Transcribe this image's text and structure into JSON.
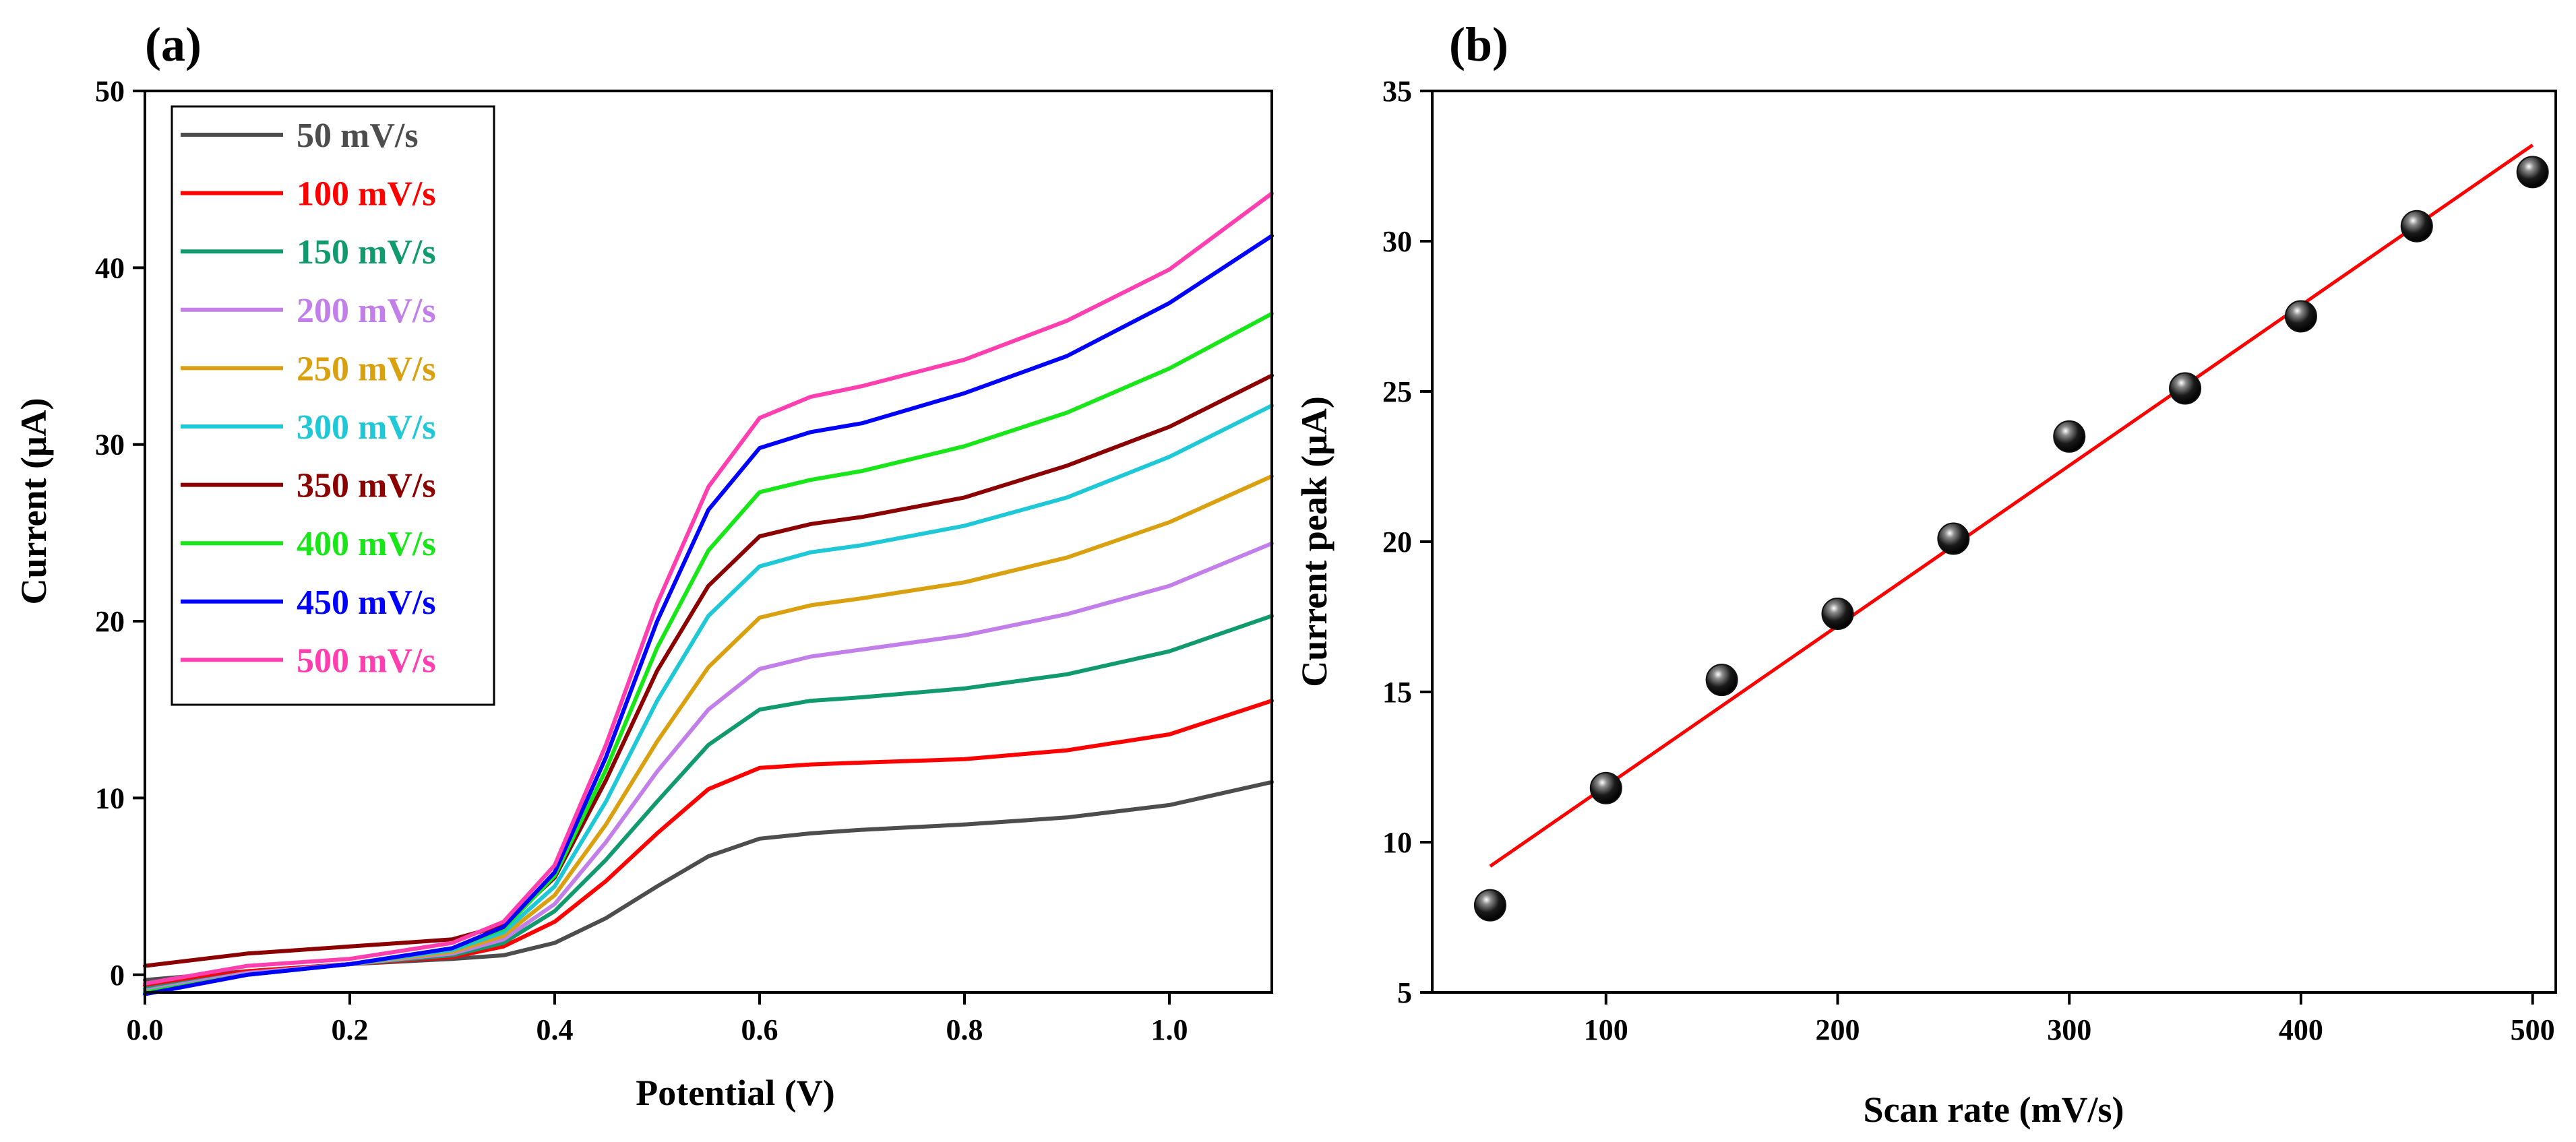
{
  "panels": [
    {
      "label": "(a)",
      "chart_data": {
        "type": "line",
        "xlabel": "Potential (V)",
        "ylabel": "Current (μA)",
        "xlim": [
          0,
          1.1
        ],
        "ylim": [
          -1,
          50
        ],
        "xticks": [
          0.0,
          0.2,
          0.4,
          0.6,
          0.8,
          1.0
        ],
        "xtick_labels": [
          "0.0",
          "0.2",
          "0.4",
          "0.6",
          "0.8",
          "1.0"
        ],
        "yticks": [
          0,
          10,
          20,
          30,
          40,
          50
        ],
        "ytick_labels": [
          "0",
          "10",
          "20",
          "30",
          "40",
          "50"
        ],
        "grid": false,
        "legend_position": "top-left",
        "x": [
          0.0,
          0.1,
          0.2,
          0.3,
          0.35,
          0.4,
          0.45,
          0.5,
          0.55,
          0.6,
          0.65,
          0.7,
          0.8,
          0.9,
          1.0,
          1.1
        ],
        "series": [
          {
            "name": "50 mV/s",
            "color": "#4d4d4d",
            "values": [
              -0.3,
              0.2,
              0.6,
              0.9,
              1.1,
              1.8,
              3.2,
              5.0,
              6.7,
              7.7,
              8.0,
              8.2,
              8.5,
              8.9,
              9.6,
              10.9
            ]
          },
          {
            "name": "100 mV/s",
            "color": "#ff0000",
            "values": [
              -0.6,
              0.2,
              0.6,
              1.0,
              1.6,
              3.0,
              5.3,
              8.0,
              10.5,
              11.7,
              11.9,
              12.0,
              12.2,
              12.7,
              13.6,
              15.5
            ]
          },
          {
            "name": "150 mV/s",
            "color": "#119a6e",
            "values": [
              -0.8,
              0.1,
              0.6,
              1.1,
              1.8,
              3.6,
              6.5,
              9.8,
              13.0,
              15.0,
              15.5,
              15.7,
              16.2,
              17.0,
              18.3,
              20.3
            ]
          },
          {
            "name": "200 mV/s",
            "color": "#c27fe9",
            "values": [
              -0.9,
              0.1,
              0.6,
              1.2,
              2.0,
              4.0,
              7.5,
              11.5,
              15.0,
              17.3,
              18.0,
              18.4,
              19.2,
              20.4,
              22.0,
              24.4
            ]
          },
          {
            "name": "250 mV/s",
            "color": "#d9a00f",
            "values": [
              -1.0,
              0.0,
              0.6,
              1.3,
              2.2,
              4.5,
              8.5,
              13.2,
              17.4,
              20.2,
              20.9,
              21.3,
              22.2,
              23.6,
              25.6,
              28.2
            ]
          },
          {
            "name": "300 mV/s",
            "color": "#1ec8d6",
            "values": [
              -1.0,
              0.0,
              0.6,
              1.4,
              2.4,
              5.0,
              9.8,
              15.5,
              20.3,
              23.1,
              23.9,
              24.3,
              25.4,
              27.0,
              29.3,
              32.2
            ]
          },
          {
            "name": "350 mV/s",
            "color": "#8b0000",
            "values": [
              0.5,
              1.2,
              1.6,
              2.0,
              2.8,
              5.5,
              11.0,
              17.2,
              22.0,
              24.8,
              25.5,
              25.9,
              27.0,
              28.8,
              31.0,
              33.9
            ]
          },
          {
            "name": "400 mV/s",
            "color": "#19e619",
            "values": [
              -1.0,
              0.0,
              0.6,
              1.5,
              2.6,
              5.6,
              11.6,
              18.5,
              24.0,
              27.3,
              28.0,
              28.5,
              29.9,
              31.8,
              34.3,
              37.4
            ]
          },
          {
            "name": "450 mV/s",
            "color": "#0000ff",
            "values": [
              -1.1,
              0.0,
              0.6,
              1.5,
              2.7,
              5.8,
              12.3,
              20.0,
              26.3,
              29.8,
              30.7,
              31.2,
              32.9,
              35.0,
              38.0,
              41.8
            ]
          },
          {
            "name": "500 mV/s",
            "color": "#ff3fb0",
            "values": [
              -0.5,
              0.5,
              0.9,
              1.8,
              3.0,
              6.2,
              13.0,
              21.0,
              27.6,
              31.5,
              32.7,
              33.3,
              34.8,
              37.0,
              39.9,
              44.2
            ]
          }
        ]
      }
    },
    {
      "label": "(b)",
      "chart_data": {
        "type": "scatter",
        "xlabel": "Scan rate (mV/s)",
        "ylabel": "Current peak (μA)",
        "xlim": [
          25,
          510
        ],
        "ylim": [
          5,
          35
        ],
        "xticks": [
          100,
          200,
          300,
          400,
          500
        ],
        "xtick_labels": [
          "100",
          "200",
          "300",
          "400",
          "500"
        ],
        "yticks": [
          5,
          10,
          15,
          20,
          25,
          30,
          35
        ],
        "ytick_labels": [
          "5",
          "10",
          "15",
          "20",
          "25",
          "30",
          "35"
        ],
        "grid": false,
        "x": [
          50,
          100,
          150,
          200,
          250,
          300,
          350,
          400,
          450,
          500
        ],
        "y": [
          7.9,
          11.8,
          15.4,
          17.6,
          20.1,
          23.5,
          25.1,
          27.5,
          30.5,
          32.3
        ],
        "marker_color": "#111111",
        "fit_line": {
          "color": "#ff0000",
          "x": [
            50,
            500
          ],
          "y": [
            9.2,
            33.2
          ]
        }
      }
    }
  ]
}
